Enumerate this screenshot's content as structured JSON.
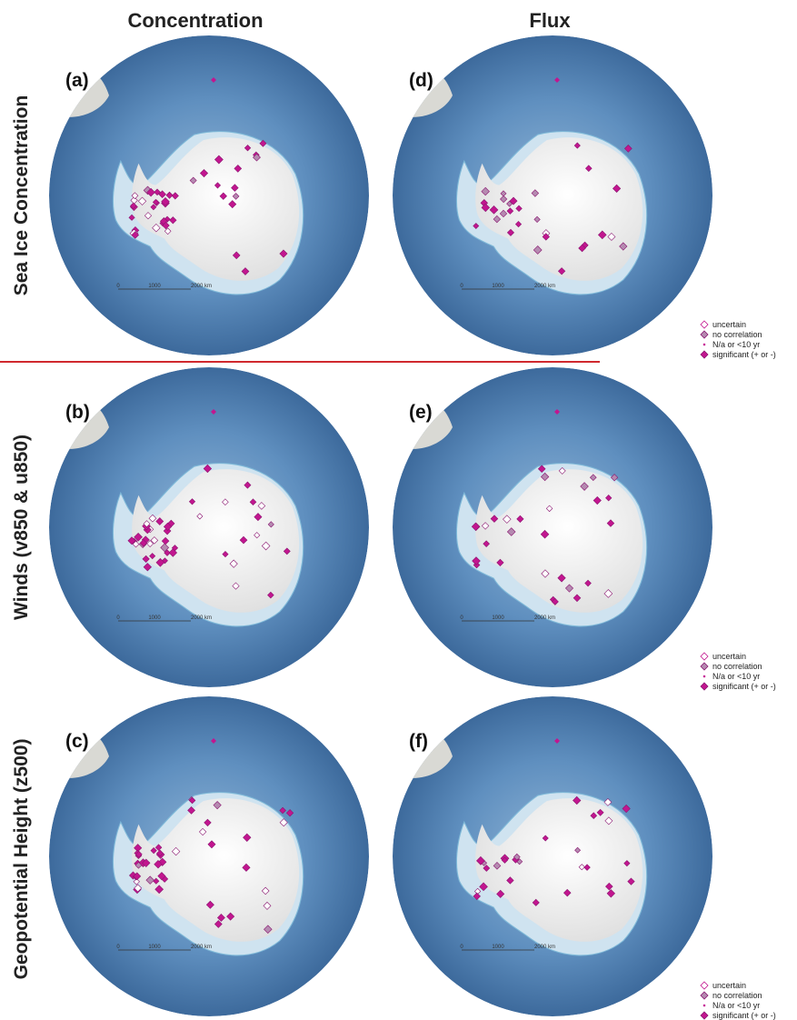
{
  "columns": [
    "Concentration",
    "Flux"
  ],
  "rows": [
    "Sea Ice Concentration",
    "Winds (v850 & u850)",
    "Geopotential Height (z500)"
  ],
  "panels": [
    "(a)",
    "(b)",
    "(c)",
    "(d)",
    "(e)",
    "(f)"
  ],
  "scale_bar": [
    "0",
    "1000",
    "2000 km"
  ],
  "legend": [
    "uncertain",
    "no correlation",
    "N/a or <10 yr",
    "significant (+ or -)"
  ]
}
